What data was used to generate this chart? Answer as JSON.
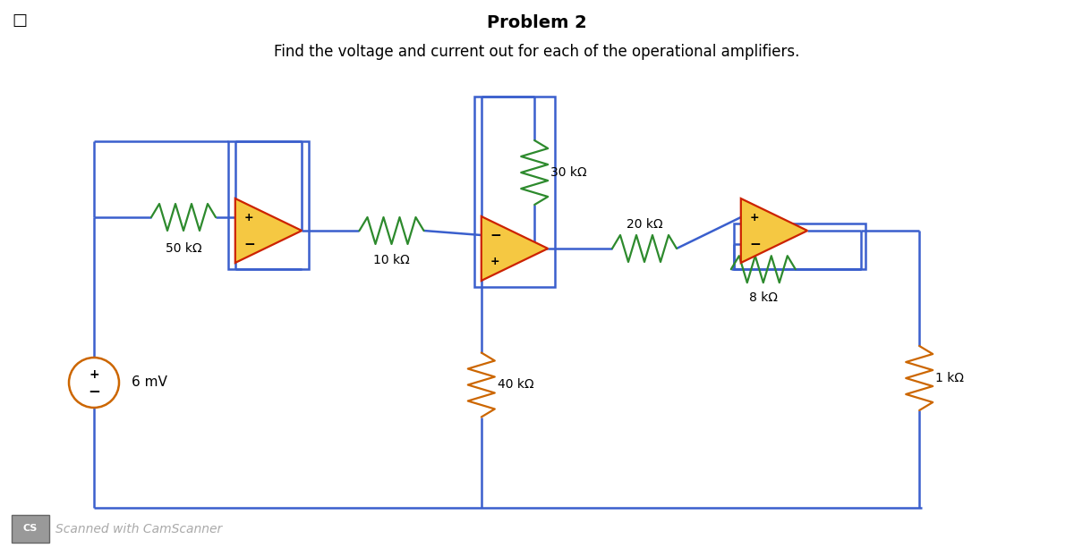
{
  "title": "Problem 2",
  "subtitle": "Find the voltage and current out for each of the operational amplifiers.",
  "bg_color": "#ffffff",
  "wire_color": "#3a5fcd",
  "resistor_color_green": "#2d8a2d",
  "resistor_color_orange": "#cc6600",
  "op_amp_fill": "#f5c842",
  "op_amp_stroke": "#cc2200",
  "source_stroke": "#cc6600",
  "cs_box_color": "#999999",
  "labels": {
    "R1": "50 kΩ",
    "R2": "10 kΩ",
    "R3": "30 kΩ",
    "R4": "20 kΩ",
    "R5": "40 kΩ",
    "R6": "8 kΩ",
    "R7": "1 kΩ",
    "Vs": "6 mV"
  }
}
